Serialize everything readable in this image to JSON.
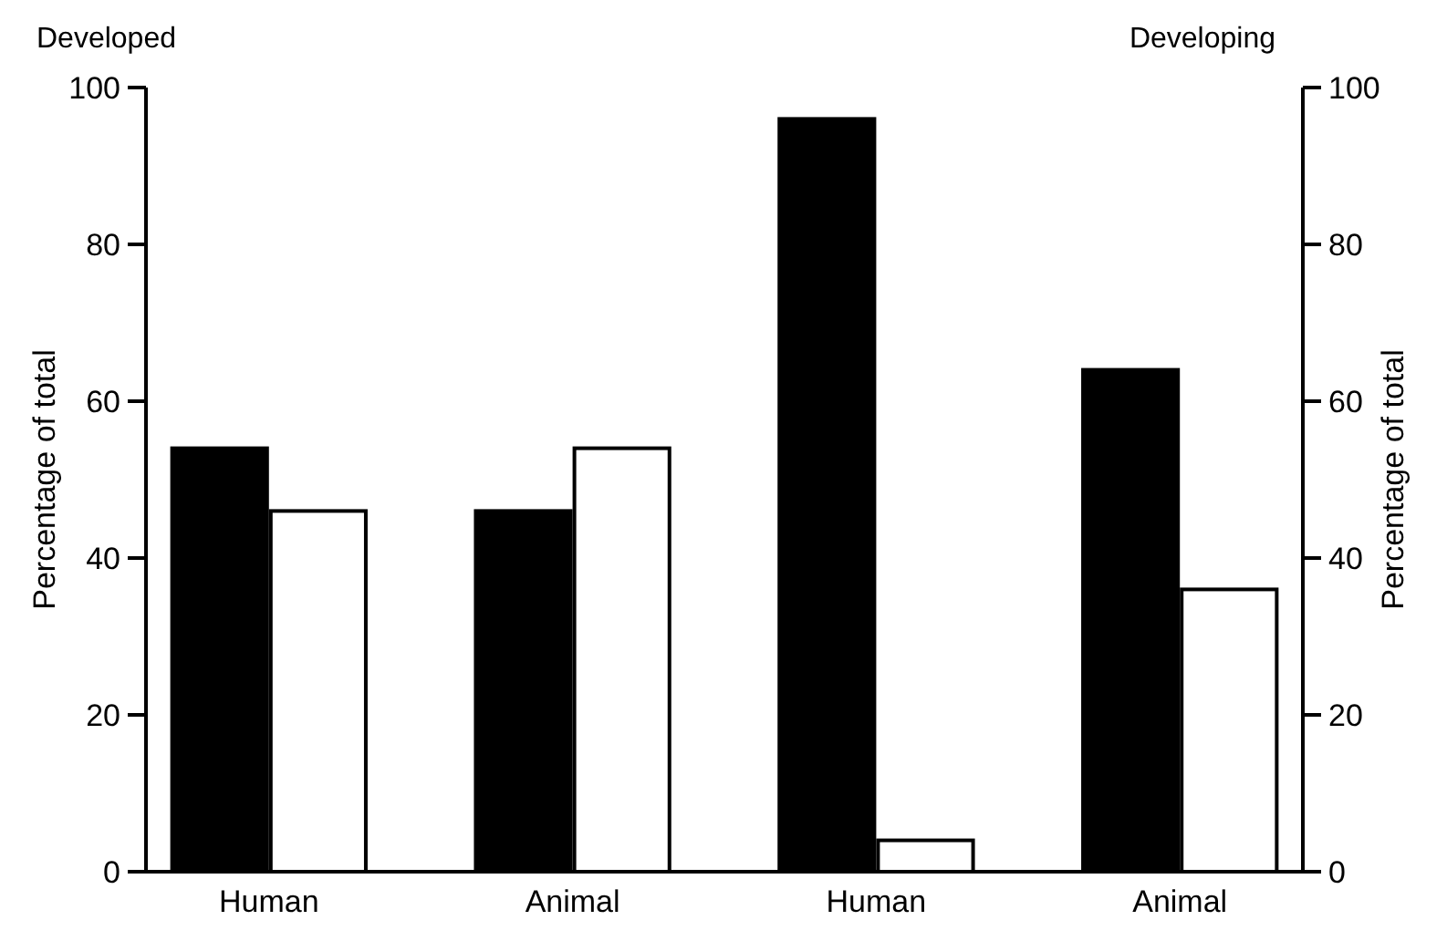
{
  "chart_data": {
    "type": "bar",
    "categories": [
      "Human",
      "Animal",
      "Human",
      "Animal"
    ],
    "series": [
      {
        "color": "#000000",
        "values": [
          54,
          46,
          96,
          64
        ]
      },
      {
        "color": "#ffffff",
        "values": [
          46,
          54,
          4,
          36
        ]
      }
    ],
    "ylabel": "Percentage of total",
    "y2label": "Percentage of total",
    "ylim": [
      0,
      100
    ],
    "yticks": [
      0,
      20,
      40,
      60,
      80,
      100
    ],
    "y2lim": [
      0,
      100
    ],
    "y2ticks": [
      0,
      20,
      40,
      60,
      80,
      100
    ],
    "annotations": [
      "Developed",
      "Developing"
    ]
  }
}
